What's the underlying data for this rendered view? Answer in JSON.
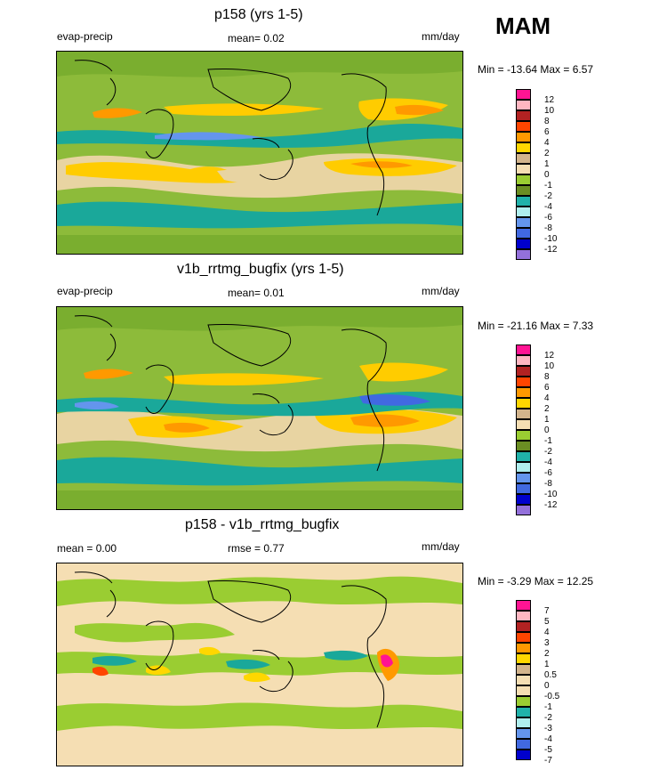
{
  "season": "MAM",
  "panels": [
    {
      "title": "p158 (yrs 1-5)",
      "left_label": "evap-precip",
      "center_label": "mean=  0.02",
      "right_label": "mm/day",
      "minmax": "Min = -13.64 Max =   6.57",
      "legend": [
        {
          "label": "12",
          "color": "#ff1493"
        },
        {
          "label": "10",
          "color": "#ffb6c1"
        },
        {
          "label": "8",
          "color": "#b22222"
        },
        {
          "label": "6",
          "color": "#ff4500"
        },
        {
          "label": "4",
          "color": "#ff9900"
        },
        {
          "label": "2",
          "color": "#ffd700"
        },
        {
          "label": "1",
          "color": "#d2b48c"
        },
        {
          "label": "0",
          "color": "#f5deb3"
        },
        {
          "label": "-1",
          "color": "#9acd32"
        },
        {
          "label": "-2",
          "color": "#6b8e23"
        },
        {
          "label": "-4",
          "color": "#20b2aa"
        },
        {
          "label": "-6",
          "color": "#afeeee"
        },
        {
          "label": "-8",
          "color": "#6495ed"
        },
        {
          "label": "-10",
          "color": "#4169e1"
        },
        {
          "label": "-12",
          "color": "#0000cd"
        },
        {
          "label": "",
          "color": "#9370db"
        }
      ]
    },
    {
      "title": "v1b_rrtmg_bugfix (yrs 1-5)",
      "left_label": "evap-precip",
      "center_label": "mean=  0.01",
      "right_label": "mm/day",
      "minmax": "Min = -21.16 Max =   7.33",
      "legend": [
        {
          "label": "12",
          "color": "#ff1493"
        },
        {
          "label": "10",
          "color": "#ffb6c1"
        },
        {
          "label": "8",
          "color": "#b22222"
        },
        {
          "label": "6",
          "color": "#ff4500"
        },
        {
          "label": "4",
          "color": "#ff9900"
        },
        {
          "label": "2",
          "color": "#ffd700"
        },
        {
          "label": "1",
          "color": "#d2b48c"
        },
        {
          "label": "0",
          "color": "#f5deb3"
        },
        {
          "label": "-1",
          "color": "#9acd32"
        },
        {
          "label": "-2",
          "color": "#6b8e23"
        },
        {
          "label": "-4",
          "color": "#20b2aa"
        },
        {
          "label": "-6",
          "color": "#afeeee"
        },
        {
          "label": "-8",
          "color": "#6495ed"
        },
        {
          "label": "-10",
          "color": "#4169e1"
        },
        {
          "label": "-12",
          "color": "#0000cd"
        },
        {
          "label": "",
          "color": "#9370db"
        }
      ]
    },
    {
      "title": "p158 - v1b_rrtmg_bugfix",
      "left_label": "mean =   0.00",
      "center_label": "rmse =   0.77",
      "right_label": "mm/day",
      "minmax": "Min =  -3.29 Max =  12.25",
      "legend": [
        {
          "label": "7",
          "color": "#ff1493"
        },
        {
          "label": "5",
          "color": "#ffb6c1"
        },
        {
          "label": "4",
          "color": "#b22222"
        },
        {
          "label": "3",
          "color": "#ff4500"
        },
        {
          "label": "2",
          "color": "#ff9900"
        },
        {
          "label": "1",
          "color": "#ffd700"
        },
        {
          "label": "0.5",
          "color": "#d2b48c"
        },
        {
          "label": "0",
          "color": "#f5deb3"
        },
        {
          "label": "-0.5",
          "color": "#f5deb3"
        },
        {
          "label": "-1",
          "color": "#9acd32"
        },
        {
          "label": "-2",
          "color": "#20b2aa"
        },
        {
          "label": "-3",
          "color": "#afeeee"
        },
        {
          "label": "-4",
          "color": "#6495ed"
        },
        {
          "label": "-5",
          "color": "#4169e1"
        },
        {
          "label": "-7",
          "color": "#0000cd"
        },
        {
          "label": "",
          "color": "#9370db"
        }
      ]
    }
  ]
}
